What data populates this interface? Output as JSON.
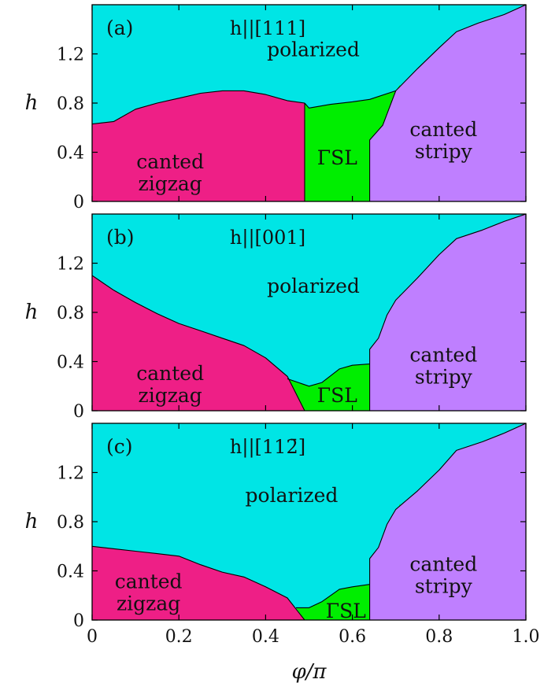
{
  "colors": {
    "polarized": "#00e5e5",
    "canted-zigzag": "#ee1f86",
    "gamma-sl": "#00ee00",
    "canted-stripy": "#bf7fff"
  },
  "chart_data": [
    {
      "type": "area",
      "panel_tag": "(a)",
      "field_direction": "h||[111]",
      "xlabel": "φ/π",
      "ylabel": "h",
      "xlim": [
        0,
        1
      ],
      "ylim": [
        0,
        1.6
      ],
      "x_ticks": [
        0,
        0.2,
        0.4,
        0.6,
        0.8,
        1.0
      ],
      "x_tick_labels": [
        "0",
        "0.2",
        "0.4",
        "0.6",
        "0.8",
        "1.0"
      ],
      "y_ticks": [
        0,
        0.4,
        0.8,
        1.2
      ],
      "y_tick_labels": [
        "0",
        "0.4",
        "0.8",
        "1.2"
      ],
      "region_labels": [
        {
          "key": "polarized",
          "lines": [
            "polarized"
          ],
          "x": 0.51,
          "y": 1.18
        },
        {
          "key": "canted-zigzag",
          "lines": [
            "canted",
            "zigzag"
          ],
          "x": 0.18,
          "y": 0.27
        },
        {
          "key": "gamma-sl",
          "lines": [
            "ΓSL"
          ],
          "x": 0.565,
          "y": 0.3
        },
        {
          "key": "canted-stripy",
          "lines": [
            "canted",
            "stripy"
          ],
          "x": 0.81,
          "y": 0.53
        }
      ],
      "boundaries": {
        "zigzag_upper": [
          [
            0,
            0.63
          ],
          [
            0.05,
            0.65
          ],
          [
            0.1,
            0.75
          ],
          [
            0.15,
            0.8
          ],
          [
            0.2,
            0.84
          ],
          [
            0.25,
            0.88
          ],
          [
            0.3,
            0.9
          ],
          [
            0.35,
            0.9
          ],
          [
            0.4,
            0.87
          ],
          [
            0.45,
            0.82
          ],
          [
            0.49,
            0.8
          ]
        ],
        "zigzag_right_x": 0.49,
        "gamma_upper": [
          [
            0.49,
            0.8
          ],
          [
            0.5,
            0.76
          ],
          [
            0.55,
            0.79
          ],
          [
            0.6,
            0.81
          ],
          [
            0.64,
            0.83
          ],
          [
            0.7,
            0.9
          ]
        ],
        "stripy_left": [
          [
            0.64,
            0
          ],
          [
            0.64,
            0.5
          ],
          [
            0.67,
            0.62
          ],
          [
            0.7,
            0.9
          ],
          [
            0.75,
            1.08
          ],
          [
            0.8,
            1.25
          ],
          [
            0.84,
            1.38
          ],
          [
            0.89,
            1.45
          ],
          [
            0.95,
            1.52
          ],
          [
            1.0,
            1.6
          ]
        ]
      }
    },
    {
      "type": "area",
      "panel_tag": "(b)",
      "field_direction": "h||[001]",
      "xlabel": "φ/π",
      "ylabel": "h",
      "xlim": [
        0,
        1
      ],
      "ylim": [
        0,
        1.6
      ],
      "x_ticks": [
        0,
        0.2,
        0.4,
        0.6,
        0.8,
        1.0
      ],
      "x_tick_labels": [
        "0",
        "0.2",
        "0.4",
        "0.6",
        "0.8",
        "1.0"
      ],
      "y_ticks": [
        0,
        0.4,
        0.8,
        1.2
      ],
      "y_tick_labels": [
        "0",
        "0.4",
        "0.8",
        "1.2"
      ],
      "region_labels": [
        {
          "key": "polarized",
          "lines": [
            "polarized"
          ],
          "x": 0.51,
          "y": 0.96
        },
        {
          "key": "canted-zigzag",
          "lines": [
            "canted",
            "zigzag"
          ],
          "x": 0.18,
          "y": 0.25
        },
        {
          "key": "gamma-sl",
          "lines": [
            "ΓSL"
          ],
          "x": 0.565,
          "y": 0.07
        },
        {
          "key": "canted-stripy",
          "lines": [
            "canted",
            "stripy"
          ],
          "x": 0.81,
          "y": 0.4
        }
      ],
      "boundaries": {
        "zigzag_upper": [
          [
            0,
            1.1
          ],
          [
            0.05,
            0.98
          ],
          [
            0.1,
            0.88
          ],
          [
            0.15,
            0.79
          ],
          [
            0.2,
            0.71
          ],
          [
            0.25,
            0.65
          ],
          [
            0.3,
            0.59
          ],
          [
            0.35,
            0.53
          ],
          [
            0.4,
            0.43
          ],
          [
            0.45,
            0.28
          ],
          [
            0.49,
            0.0
          ]
        ],
        "zigzag_right_x": 0.49,
        "gamma_upper": [
          [
            0.45,
            0.26
          ],
          [
            0.5,
            0.2
          ],
          [
            0.53,
            0.23
          ],
          [
            0.57,
            0.34
          ],
          [
            0.6,
            0.37
          ],
          [
            0.64,
            0.38
          ]
        ],
        "stripy_left": [
          [
            0.64,
            0
          ],
          [
            0.64,
            0.5
          ],
          [
            0.66,
            0.59
          ],
          [
            0.68,
            0.78
          ],
          [
            0.7,
            0.9
          ],
          [
            0.75,
            1.08
          ],
          [
            0.8,
            1.27
          ],
          [
            0.84,
            1.4
          ],
          [
            0.9,
            1.47
          ],
          [
            0.95,
            1.54
          ],
          [
            1.0,
            1.6
          ]
        ]
      }
    },
    {
      "type": "area",
      "panel_tag": "(c)",
      "field_direction": "h||[112̄]",
      "xlabel": "φ/π",
      "ylabel": "h",
      "xlim": [
        0,
        1
      ],
      "ylim": [
        0,
        1.6
      ],
      "x_ticks": [
        0,
        0.2,
        0.4,
        0.6,
        0.8,
        1.0
      ],
      "x_tick_labels": [
        "0",
        "0.2",
        "0.4",
        "0.6",
        "0.8",
        "1.0"
      ],
      "y_ticks": [
        0,
        0.4,
        0.8,
        1.2
      ],
      "y_tick_labels": [
        "0",
        "0.4",
        "0.8",
        "1.2"
      ],
      "region_labels": [
        {
          "key": "polarized",
          "lines": [
            "polarized"
          ],
          "x": 0.46,
          "y": 0.96
        },
        {
          "key": "canted-zigzag",
          "lines": [
            "canted",
            "zigzag"
          ],
          "x": 0.13,
          "y": 0.26
        },
        {
          "key": "gamma-sl",
          "lines": [
            "ΓSL"
          ],
          "x": 0.585,
          "y": 0.02
        },
        {
          "key": "canted-stripy",
          "lines": [
            "canted",
            "stripy"
          ],
          "x": 0.81,
          "y": 0.4
        }
      ],
      "boundaries": {
        "zigzag_upper": [
          [
            0,
            0.6
          ],
          [
            0.05,
            0.58
          ],
          [
            0.1,
            0.56
          ],
          [
            0.15,
            0.54
          ],
          [
            0.2,
            0.52
          ],
          [
            0.25,
            0.45
          ],
          [
            0.3,
            0.39
          ],
          [
            0.35,
            0.35
          ],
          [
            0.4,
            0.27
          ],
          [
            0.45,
            0.18
          ],
          [
            0.49,
            0.0
          ]
        ],
        "zigzag_right_x": 0.49,
        "gamma_upper": [
          [
            0.47,
            0.1
          ],
          [
            0.5,
            0.1
          ],
          [
            0.53,
            0.15
          ],
          [
            0.57,
            0.25
          ],
          [
            0.6,
            0.27
          ],
          [
            0.64,
            0.29
          ]
        ],
        "stripy_left": [
          [
            0.64,
            0
          ],
          [
            0.64,
            0.5
          ],
          [
            0.66,
            0.59
          ],
          [
            0.68,
            0.78
          ],
          [
            0.7,
            0.9
          ],
          [
            0.75,
            1.05
          ],
          [
            0.8,
            1.22
          ],
          [
            0.84,
            1.38
          ],
          [
            0.9,
            1.45
          ],
          [
            0.95,
            1.52
          ],
          [
            1.0,
            1.6
          ]
        ]
      }
    }
  ]
}
